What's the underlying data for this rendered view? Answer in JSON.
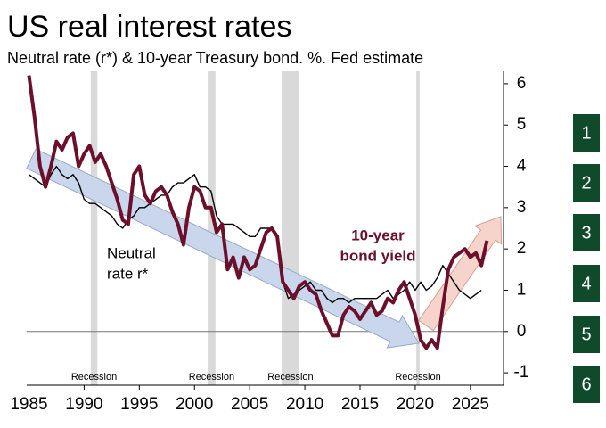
{
  "chart_data": {
    "type": "line",
    "title": "US real interest rates",
    "subtitle": "Neutral rate (r*) & 10-year Treasury bond. %. Fed estimate",
    "x": [
      1985,
      1985.5,
      1986,
      1986.5,
      1987,
      1987.5,
      1988,
      1988.5,
      1989,
      1989.5,
      1990,
      1990.5,
      1991,
      1991.5,
      1992,
      1992.5,
      1993,
      1993.5,
      1994,
      1994.5,
      1995,
      1995.5,
      1996,
      1996.5,
      1997,
      1997.5,
      1998,
      1998.5,
      1999,
      1999.5,
      2000,
      2000.5,
      2001,
      2001.5,
      2002,
      2002.5,
      2003,
      2003.5,
      2004,
      2004.5,
      2005,
      2005.5,
      2006,
      2006.5,
      2007,
      2007.5,
      2008,
      2008.5,
      2009,
      2009.5,
      2010,
      2010.5,
      2011,
      2011.5,
      2012,
      2012.5,
      2013,
      2013.5,
      2014,
      2014.5,
      2015,
      2015.5,
      2016,
      2016.5,
      2017,
      2017.5,
      2018,
      2018.5,
      2019,
      2019.5,
      2020,
      2020.5,
      2021,
      2021.5,
      2022,
      2022.5,
      2023,
      2023.5,
      2024,
      2024.5,
      2025,
      2025.5,
      2026,
      2026.5
    ],
    "series": [
      {
        "name": "Neutral rate r*",
        "label_lines": [
          "Neutral",
          "rate r*"
        ],
        "color": "#000000",
        "values": [
          3.8,
          3.7,
          3.6,
          3.5,
          3.8,
          4.0,
          3.8,
          3.7,
          3.8,
          3.6,
          3.2,
          3.1,
          3.1,
          3.0,
          2.9,
          2.8,
          2.6,
          2.5,
          2.7,
          2.8,
          3.0,
          3.0,
          3.1,
          3.2,
          3.3,
          3.3,
          3.5,
          3.6,
          3.6,
          3.7,
          3.8,
          3.5,
          3.5,
          3.4,
          2.8,
          2.6,
          2.6,
          2.6,
          2.5,
          2.4,
          2.3,
          2.3,
          2.5,
          2.5,
          2.5,
          2.3,
          1.2,
          0.8,
          0.9,
          1.0,
          1.1,
          1.2,
          1.0,
          1.0,
          0.8,
          0.7,
          0.8,
          0.8,
          0.7,
          0.8,
          0.8,
          0.8,
          0.8,
          0.8,
          0.9,
          1.0,
          0.8,
          0.9,
          1.0,
          1.2,
          1.0,
          1.2,
          1.0,
          1.1,
          1.3,
          1.6,
          1.4,
          1.2,
          1.0,
          0.9,
          0.8,
          0.9,
          1.0,
          null
        ]
      },
      {
        "name": "10-year bond yield",
        "label_lines": [
          "10-year",
          "bond yield"
        ],
        "color": "#6b0f2a",
        "values": [
          6.2,
          5.2,
          4.0,
          3.5,
          4.0,
          4.6,
          4.4,
          4.7,
          4.8,
          4.0,
          4.3,
          4.5,
          4.1,
          4.3,
          4.0,
          3.6,
          3.2,
          2.7,
          2.6,
          3.8,
          4.0,
          3.3,
          3.1,
          3.4,
          3.5,
          3.3,
          2.9,
          2.6,
          2.1,
          3.0,
          3.5,
          3.4,
          3.0,
          3.0,
          2.4,
          2.6,
          1.5,
          1.8,
          1.3,
          1.8,
          1.5,
          1.6,
          2.0,
          2.4,
          2.5,
          2.3,
          1.2,
          1.0,
          0.8,
          1.1,
          1.2,
          1.0,
          0.9,
          0.5,
          0.2,
          -0.1,
          -0.1,
          0.4,
          0.6,
          0.5,
          0.3,
          0.5,
          0.7,
          0.4,
          0.5,
          0.8,
          0.7,
          1.0,
          1.2,
          0.8,
          0.4,
          -0.2,
          -0.4,
          -0.2,
          -0.4,
          0.6,
          1.5,
          1.8,
          1.9,
          2.0,
          1.8,
          1.9,
          1.6,
          2.2
        ]
      }
    ],
    "recessions": [
      {
        "start": 1990.6,
        "end": 1991.2,
        "label": "Recession"
      },
      {
        "start": 2001.2,
        "end": 2001.9,
        "label": "Recession"
      },
      {
        "start": 2007.9,
        "end": 2009.5,
        "label": "Recession"
      },
      {
        "start": 2020.1,
        "end": 2020.4,
        "label": "Recession"
      }
    ],
    "recession_color": "#d9d9d9",
    "zero_line": 0,
    "xlim": [
      1984.8,
      2028
    ],
    "xticks": [
      1985,
      1990,
      1995,
      2000,
      2005,
      2010,
      2015,
      2020,
      2025
    ],
    "ylim": [
      -1.3,
      6.3
    ],
    "yticks": [
      -1,
      0,
      1,
      2,
      3,
      4,
      5,
      6
    ],
    "y_axis_side": "right"
  },
  "sidebar": {
    "buttons": [
      "1",
      "2",
      "3",
      "4",
      "5",
      "6"
    ]
  }
}
